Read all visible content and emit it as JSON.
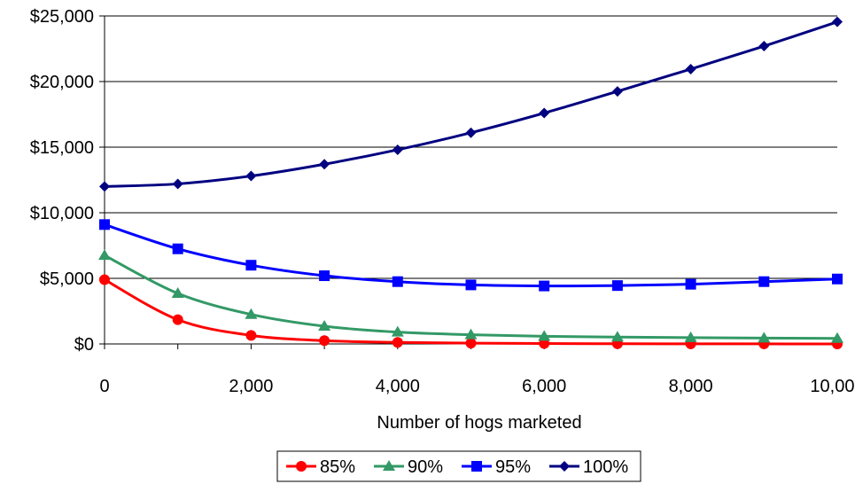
{
  "chart_data": {
    "type": "line",
    "title": "",
    "xlabel": "Number of hogs marketed",
    "ylabel": "",
    "x": [
      0,
      1000,
      2000,
      3000,
      4000,
      5000,
      6000,
      7000,
      8000,
      9000,
      10000
    ],
    "xlim": [
      0,
      10000
    ],
    "ylim": [
      0,
      25000
    ],
    "x_ticks": [
      0,
      2000,
      4000,
      6000,
      8000,
      10000
    ],
    "x_tick_labels": [
      "0",
      "2,000",
      "4,000",
      "6,000",
      "8,000",
      "10,000"
    ],
    "y_ticks": [
      0,
      5000,
      10000,
      15000,
      20000,
      25000
    ],
    "y_tick_labels": [
      "$0",
      "$5,000",
      "$10,000",
      "$15,000",
      "$20,000",
      "$25,000"
    ],
    "grid": "horizontal",
    "legend_position": "bottom",
    "series": [
      {
        "name": "85%",
        "color": "#ff0000",
        "marker": "circle",
        "values": [
          4900,
          1850,
          650,
          250,
          120,
          60,
          30,
          15,
          10,
          5,
          0
        ]
      },
      {
        "name": "90%",
        "color": "#339966",
        "marker": "triangle",
        "values": [
          6750,
          3850,
          2250,
          1350,
          900,
          700,
          580,
          520,
          480,
          450,
          420
        ]
      },
      {
        "name": "95%",
        "color": "#0000ff",
        "marker": "square",
        "values": [
          9100,
          7250,
          6000,
          5200,
          4750,
          4500,
          4420,
          4450,
          4550,
          4750,
          4950
        ]
      },
      {
        "name": "100%",
        "color": "#000080",
        "marker": "diamond",
        "values": [
          12000,
          12200,
          12800,
          13700,
          14800,
          16100,
          17600,
          19250,
          20950,
          22700,
          24550
        ]
      }
    ]
  }
}
